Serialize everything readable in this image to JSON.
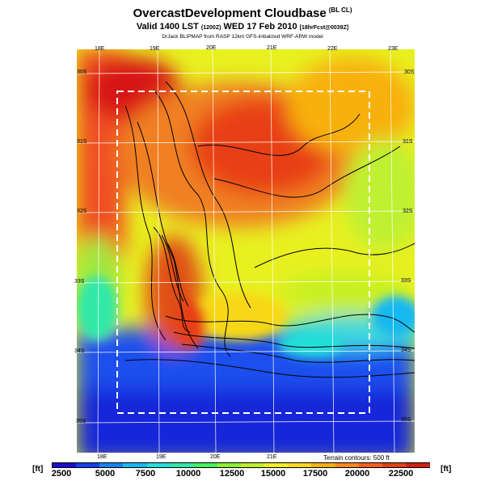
{
  "header": {
    "title": "OvercastDevelopment Cloudbase",
    "title_sub": "(BL CL)",
    "valid_main": "Valid 1400 LST",
    "valid_small": "(1200Z)",
    "valid_date": "WED 17 Feb 2010",
    "valid_run": "[18hrFcst@0039Z]",
    "model_line": "DrJack BLIPMAP from RASP 12km GFS-initialized WRF-ARW model"
  },
  "map": {
    "lon_labels_top": [
      "18E",
      "19E",
      "20E",
      "21E",
      "22E",
      "23E"
    ],
    "lon_labels_bottom": [
      "18E",
      "19E",
      "20E",
      "21E"
    ],
    "lat_labels_left": [
      "30S",
      "31S",
      "32S",
      "33S",
      "34S",
      "35S"
    ],
    "lat_labels_right": [
      "30S",
      "31S",
      "32S",
      "33S",
      "34S",
      "35S"
    ],
    "terrain_note": "Terrain contours: 500 ft"
  },
  "colorbar": {
    "unit_left": "[ft]",
    "unit_right": "[ft]",
    "ticks": [
      "2500",
      "5000",
      "7500",
      "10000",
      "12500",
      "15000",
      "17500",
      "20000",
      "22500"
    ],
    "colors": [
      "#1a0fcf",
      "#1840ee",
      "#1a80f5",
      "#18b8f0",
      "#22e0d8",
      "#30e8a8",
      "#48f060",
      "#8cf030",
      "#c0f028",
      "#f0f020",
      "#f8d818",
      "#f8b010",
      "#f88820",
      "#f06020",
      "#e04018",
      "#d02018"
    ]
  }
}
